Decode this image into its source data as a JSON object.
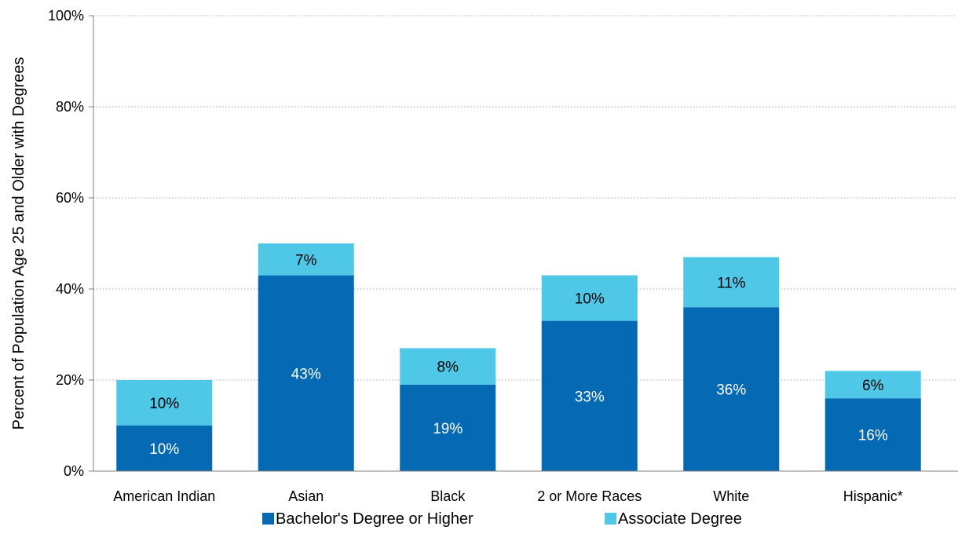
{
  "chart_data": {
    "type": "bar",
    "stacked": true,
    "categories": [
      "American Indian",
      "Asian",
      "Black",
      "2 or More Races",
      "White",
      "Hispanic*"
    ],
    "series": [
      {
        "name": "Bachelor's Degree or Higher",
        "values": [
          10,
          43,
          19,
          33,
          36,
          16
        ],
        "color": "#0569b4",
        "label_color": "#ffffff"
      },
      {
        "name": "Associate Degree",
        "values": [
          10,
          7,
          8,
          10,
          11,
          6
        ],
        "color": "#4fc8e8",
        "label_color": "#000000"
      }
    ],
    "data_labels": [
      [
        "10%",
        "43%",
        "19%",
        "33%",
        "36%",
        "16%"
      ],
      [
        "10%",
        "7%",
        "8%",
        "10%",
        "11%",
        "6%"
      ]
    ],
    "ylabel": "Percent of Population Age 25 and Older with Degrees",
    "xlabel": "",
    "ylim": [
      0,
      100
    ],
    "yticks": [
      0,
      20,
      40,
      60,
      80,
      100
    ],
    "ytick_labels": [
      "0%",
      "20%",
      "40%",
      "60%",
      "80%",
      "100%"
    ],
    "grid": true,
    "legend_position": "bottom"
  }
}
